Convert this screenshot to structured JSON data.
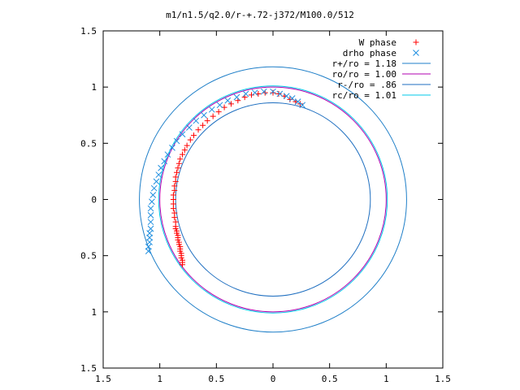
{
  "chart_data": {
    "type": "scatter",
    "title": "m1/n1.5/q2.0/r-+.72-j372/M100.0/512",
    "xlabel": "",
    "ylabel": "",
    "xlim": [
      -1.5,
      1.5
    ],
    "ylim": [
      -1.5,
      1.5
    ],
    "x_tick_values": [
      -1.5,
      -1,
      -0.5,
      0,
      0.5,
      1,
      1.5
    ],
    "x_tick_labels": [
      "1.5",
      "1",
      "0.5",
      "0",
      "0.5",
      "1",
      "1.5"
    ],
    "y_tick_values": [
      1.5,
      1,
      0.5,
      0,
      -0.5,
      -1,
      -1.5
    ],
    "y_tick_labels": [
      "1.5",
      "1",
      "0.5",
      "0",
      "0.5",
      "1",
      "1.5"
    ],
    "grid": false,
    "legend_position": "top-right",
    "legend": [
      {
        "label": "W phase",
        "kind": "marker",
        "marker": "+",
        "color": "#ff0000"
      },
      {
        "label": "drho phase",
        "kind": "marker",
        "marker": "x",
        "color": "#1f8fe0"
      },
      {
        "label": "r+/ro = 1.18",
        "kind": "line",
        "color": "#1f7fc8"
      },
      {
        "label": "ro/ro = 1.00",
        "kind": "line",
        "color": "#b000b0"
      },
      {
        "label": "r-/ro = .86",
        "kind": "line",
        "color": "#1f6fc0"
      },
      {
        "label": "rc/ro = 1.01",
        "kind": "line",
        "color": "#00c8e8"
      }
    ],
    "circles": [
      {
        "name": "r+/ro = 1.18",
        "radius": 1.18,
        "color": "#1f7fc8"
      },
      {
        "name": "ro/ro = 1.00",
        "radius": 1.0,
        "color": "#b000b0"
      },
      {
        "name": "r-/ro = .86",
        "radius": 0.86,
        "color": "#1f6fc0"
      },
      {
        "name": "rc/ro = 1.01",
        "radius": 1.01,
        "color": "#00c8e8"
      }
    ],
    "series": [
      {
        "name": "W phase",
        "marker": "+",
        "color": "#ff0000",
        "points": [
          [
            -0.8,
            -0.58
          ],
          [
            -0.8,
            -0.56
          ],
          [
            -0.8,
            -0.54
          ],
          [
            -0.81,
            -0.52
          ],
          [
            -0.81,
            -0.5
          ],
          [
            -0.81,
            -0.48
          ],
          [
            -0.82,
            -0.46
          ],
          [
            -0.82,
            -0.44
          ],
          [
            -0.82,
            -0.42
          ],
          [
            -0.83,
            -0.4
          ],
          [
            -0.83,
            -0.38
          ],
          [
            -0.84,
            -0.36
          ],
          [
            -0.84,
            -0.34
          ],
          [
            -0.84,
            -0.32
          ],
          [
            -0.85,
            -0.3
          ],
          [
            -0.85,
            -0.28
          ],
          [
            -0.86,
            -0.26
          ],
          [
            -0.86,
            -0.24
          ],
          [
            -0.86,
            -0.2
          ],
          [
            -0.87,
            -0.16
          ],
          [
            -0.87,
            -0.12
          ],
          [
            -0.88,
            -0.08
          ],
          [
            -0.88,
            -0.04
          ],
          [
            -0.88,
            0.0
          ],
          [
            -0.88,
            0.04
          ],
          [
            -0.87,
            0.08
          ],
          [
            -0.87,
            0.12
          ],
          [
            -0.86,
            0.16
          ],
          [
            -0.86,
            0.2
          ],
          [
            -0.85,
            0.24
          ],
          [
            -0.84,
            0.28
          ],
          [
            -0.83,
            0.32
          ],
          [
            -0.82,
            0.36
          ],
          [
            -0.8,
            0.4
          ],
          [
            -0.78,
            0.44
          ],
          [
            -0.76,
            0.48
          ],
          [
            -0.73,
            0.53
          ],
          [
            -0.7,
            0.57
          ],
          [
            -0.66,
            0.62
          ],
          [
            -0.62,
            0.66
          ],
          [
            -0.58,
            0.7
          ],
          [
            -0.53,
            0.74
          ],
          [
            -0.48,
            0.78
          ],
          [
            -0.43,
            0.82
          ],
          [
            -0.37,
            0.85
          ],
          [
            -0.31,
            0.88
          ],
          [
            -0.25,
            0.91
          ],
          [
            -0.19,
            0.93
          ],
          [
            -0.13,
            0.94
          ],
          [
            -0.07,
            0.95
          ],
          [
            0.0,
            0.95
          ],
          [
            0.05,
            0.94
          ],
          [
            0.1,
            0.92
          ],
          [
            0.15,
            0.89
          ],
          [
            0.2,
            0.87
          ],
          [
            0.24,
            0.85
          ]
        ]
      },
      {
        "name": "drho phase",
        "marker": "x",
        "color": "#1f8fe0",
        "points": [
          [
            -1.1,
            -0.46
          ],
          [
            -1.1,
            -0.42
          ],
          [
            -1.09,
            -0.38
          ],
          [
            -1.09,
            -0.34
          ],
          [
            -1.09,
            -0.3
          ],
          [
            -1.08,
            -0.26
          ],
          [
            -1.08,
            -0.2
          ],
          [
            -1.08,
            -0.14
          ],
          [
            -1.08,
            -0.08
          ],
          [
            -1.07,
            -0.02
          ],
          [
            -1.06,
            0.04
          ],
          [
            -1.05,
            0.1
          ],
          [
            -1.03,
            0.16
          ],
          [
            -1.01,
            0.22
          ],
          [
            -0.99,
            0.28
          ],
          [
            -0.96,
            0.34
          ],
          [
            -0.93,
            0.4
          ],
          [
            -0.89,
            0.46
          ],
          [
            -0.85,
            0.52
          ],
          [
            -0.8,
            0.58
          ],
          [
            -0.74,
            0.64
          ],
          [
            -0.68,
            0.7
          ],
          [
            -0.61,
            0.75
          ],
          [
            -0.54,
            0.8
          ],
          [
            -0.47,
            0.84
          ],
          [
            -0.4,
            0.88
          ],
          [
            -0.32,
            0.91
          ],
          [
            -0.24,
            0.94
          ],
          [
            -0.16,
            0.95
          ],
          [
            -0.08,
            0.96
          ],
          [
            0.0,
            0.96
          ],
          [
            0.06,
            0.94
          ],
          [
            0.12,
            0.92
          ],
          [
            0.17,
            0.9
          ],
          [
            0.22,
            0.87
          ],
          [
            0.26,
            0.84
          ]
        ]
      }
    ]
  }
}
